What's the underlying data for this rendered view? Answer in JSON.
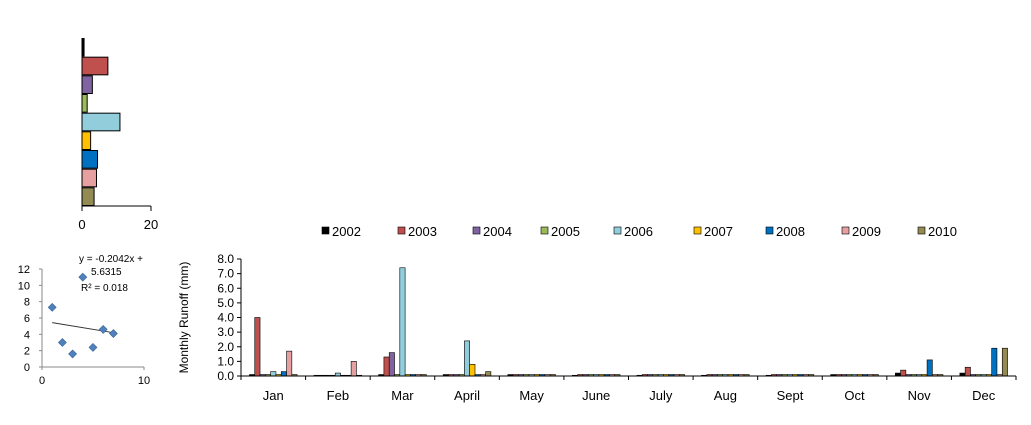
{
  "chart_data": [
    {
      "type": "bar",
      "orientation": "horizontal",
      "categories": [
        "2002",
        "2003",
        "2004",
        "2005",
        "2006",
        "2007",
        "2008",
        "2009",
        "2010"
      ],
      "values": [
        0.6,
        7.5,
        3.0,
        1.5,
        11.0,
        2.5,
        4.5,
        4.2,
        3.5
      ],
      "xlim": [
        0,
        20
      ],
      "x_ticks": [
        "0",
        "20"
      ],
      "grid": false
    },
    {
      "type": "scatter",
      "x": [
        1,
        2,
        3,
        4,
        5,
        6,
        7
      ],
      "y": [
        7.3,
        3.0,
        1.6,
        11.0,
        2.4,
        4.6,
        4.1
      ],
      "xlim": [
        0,
        10
      ],
      "ylim": [
        0,
        12
      ],
      "x_ticks": [
        "0",
        "10"
      ],
      "y_ticks": [
        "0",
        "2",
        "4",
        "6",
        "8",
        "10",
        "12"
      ],
      "trendline": {
        "slope": -0.2042,
        "intercept": 5.6315
      },
      "annotation": [
        "y = -0.2042x +",
        "5.6315",
        "R² = 0.018"
      ],
      "grid": false
    },
    {
      "type": "bar",
      "ylabel": "Monthly  Runoff (mm)",
      "categories": [
        "Jan",
        "Feb",
        "Mar",
        "April",
        "May",
        "June",
        "July",
        "Aug",
        "Sept",
        "Oct",
        "Nov",
        "Dec"
      ],
      "ylim": [
        0,
        8
      ],
      "y_ticks": [
        "0.0",
        "1.0",
        "2.0",
        "3.0",
        "4.0",
        "5.0",
        "6.0",
        "7.0",
        "8.0"
      ],
      "legend_position": "top",
      "grid": false,
      "series": [
        {
          "name": "2002",
          "color": "#000000",
          "values": [
            0.1,
            0.05,
            0.1,
            0.1,
            0.1,
            0.05,
            0.05,
            0.05,
            0.05,
            0.1,
            0.2,
            0.2
          ]
        },
        {
          "name": "2003",
          "color": "#c0504d",
          "values": [
            4.0,
            0.05,
            1.3,
            0.1,
            0.1,
            0.1,
            0.1,
            0.1,
            0.1,
            0.1,
            0.4,
            0.6
          ]
        },
        {
          "name": "2004",
          "color": "#8064a2",
          "values": [
            0.1,
            0.05,
            1.6,
            0.1,
            0.1,
            0.1,
            0.1,
            0.1,
            0.1,
            0.1,
            0.1,
            0.1
          ]
        },
        {
          "name": "2005",
          "color": "#9bbb59",
          "values": [
            0.1,
            0.05,
            0.1,
            0.1,
            0.1,
            0.1,
            0.1,
            0.1,
            0.1,
            0.1,
            0.1,
            0.1
          ]
        },
        {
          "name": "2006",
          "color": "#92cddc",
          "values": [
            0.3,
            0.2,
            7.4,
            2.4,
            0.1,
            0.1,
            0.1,
            0.1,
            0.1,
            0.1,
            0.1,
            0.1
          ]
        },
        {
          "name": "2007",
          "color": "#ffc000",
          "values": [
            0.1,
            0.05,
            0.1,
            0.8,
            0.1,
            0.1,
            0.1,
            0.1,
            0.1,
            0.1,
            0.1,
            0.1
          ]
        },
        {
          "name": "2008",
          "color": "#0070c0",
          "values": [
            0.3,
            0.05,
            0.1,
            0.1,
            0.1,
            0.1,
            0.1,
            0.1,
            0.1,
            0.1,
            1.1,
            1.9
          ]
        },
        {
          "name": "2009",
          "color": "#e6a0a0",
          "values": [
            1.7,
            1.0,
            0.1,
            0.1,
            0.1,
            0.1,
            0.1,
            0.1,
            0.1,
            0.1,
            0.1,
            0.1
          ]
        },
        {
          "name": "2010",
          "color": "#948a54",
          "values": [
            0.1,
            0.05,
            0.1,
            0.3,
            0.1,
            0.1,
            0.1,
            0.1,
            0.1,
            0.1,
            0.1,
            1.9
          ]
        }
      ]
    }
  ]
}
